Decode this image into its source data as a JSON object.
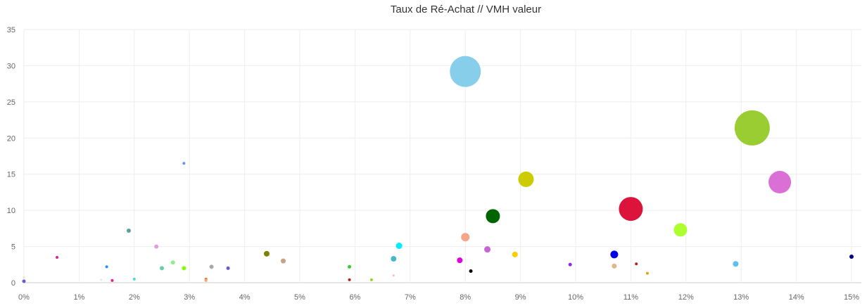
{
  "chart_data": {
    "type": "scatter",
    "subtype": "bubble",
    "title": "Taux de Ré-Achat // VMH valeur",
    "xlabel": "",
    "ylabel": "",
    "xlim": [
      0,
      15
    ],
    "ylim": [
      0,
      35
    ],
    "x_ticks": [
      "0%",
      "1%",
      "2%",
      "3%",
      "4%",
      "5%",
      "6%",
      "7%",
      "8%",
      "9%",
      "10%",
      "11%",
      "12%",
      "13%",
      "14%",
      "15%"
    ],
    "y_ticks": [
      "0",
      "5",
      "10",
      "15",
      "20",
      "25",
      "30",
      "35"
    ],
    "grid": true,
    "legend": "none",
    "points": [
      {
        "x": 0.0,
        "y": 0.7,
        "size": 1.5,
        "color": "#f5deb3"
      },
      {
        "x": 0.0,
        "y": 0.2,
        "size": 2.5,
        "color": "#6a5acd"
      },
      {
        "x": 0.6,
        "y": 3.5,
        "size": 2,
        "color": "#e0218a"
      },
      {
        "x": 1.4,
        "y": 0.4,
        "size": 1.5,
        "color": "#e6e6fa"
      },
      {
        "x": 1.5,
        "y": 2.2,
        "size": 2,
        "color": "#1e90ff"
      },
      {
        "x": 1.6,
        "y": 0.3,
        "size": 2,
        "color": "#e0218a"
      },
      {
        "x": 1.9,
        "y": 7.2,
        "size": 3,
        "color": "#5f9ea0"
      },
      {
        "x": 2.0,
        "y": 0.5,
        "size": 2,
        "color": "#40e0d0"
      },
      {
        "x": 2.4,
        "y": 5.0,
        "size": 3,
        "color": "#dda0dd"
      },
      {
        "x": 2.5,
        "y": 2.0,
        "size": 3,
        "color": "#66cdaa"
      },
      {
        "x": 2.7,
        "y": 2.8,
        "size": 3,
        "color": "#90ee90"
      },
      {
        "x": 2.9,
        "y": 16.5,
        "size": 2,
        "color": "#6495ed"
      },
      {
        "x": 2.9,
        "y": 2.0,
        "size": 3,
        "color": "#7fff00"
      },
      {
        "x": 3.3,
        "y": 0.5,
        "size": 2,
        "color": "#cd853f"
      },
      {
        "x": 3.3,
        "y": 0.3,
        "size": 2,
        "color": "#ffa07a"
      },
      {
        "x": 3.4,
        "y": 2.2,
        "size": 3,
        "color": "#a9a9a9"
      },
      {
        "x": 3.7,
        "y": 2.0,
        "size": 2.5,
        "color": "#6a5acd"
      },
      {
        "x": 4.4,
        "y": 4.0,
        "size": 4,
        "color": "#808000"
      },
      {
        "x": 4.7,
        "y": 3.0,
        "size": 3.5,
        "color": "#c4a484"
      },
      {
        "x": 5.9,
        "y": 2.2,
        "size": 2.5,
        "color": "#32cd32"
      },
      {
        "x": 5.9,
        "y": 0.4,
        "size": 2,
        "color": "#b22222"
      },
      {
        "x": 6.3,
        "y": 0.4,
        "size": 2,
        "color": "#9acd32"
      },
      {
        "x": 6.7,
        "y": 1.0,
        "size": 1.5,
        "color": "#ffb6c1"
      },
      {
        "x": 6.7,
        "y": 3.3,
        "size": 4,
        "color": "#48b8c8"
      },
      {
        "x": 6.8,
        "y": 5.1,
        "size": 4.5,
        "color": "#00eeff"
      },
      {
        "x": 7.9,
        "y": 3.1,
        "size": 4,
        "color": "#dd00dd"
      },
      {
        "x": 8.0,
        "y": 29.2,
        "size": 22,
        "color": "#87ceeb"
      },
      {
        "x": 8.0,
        "y": 6.3,
        "size": 6,
        "color": "#f4a58a"
      },
      {
        "x": 8.1,
        "y": 1.6,
        "size": 2.5,
        "color": "#000000"
      },
      {
        "x": 8.4,
        "y": 4.6,
        "size": 4.5,
        "color": "#c964d4"
      },
      {
        "x": 8.5,
        "y": 9.2,
        "size": 10,
        "color": "#006400"
      },
      {
        "x": 8.9,
        "y": 3.9,
        "size": 4,
        "color": "#ffcc00"
      },
      {
        "x": 9.1,
        "y": 14.3,
        "size": 11,
        "color": "#cccc00"
      },
      {
        "x": 9.9,
        "y": 2.5,
        "size": 2.5,
        "color": "#8a2be2"
      },
      {
        "x": 10.7,
        "y": 3.9,
        "size": 5.5,
        "color": "#0000e6"
      },
      {
        "x": 10.7,
        "y": 2.3,
        "size": 3.5,
        "color": "#deb887"
      },
      {
        "x": 11.0,
        "y": 10.2,
        "size": 17,
        "color": "#dc143c"
      },
      {
        "x": 11.1,
        "y": 2.6,
        "size": 2,
        "color": "#b22222"
      },
      {
        "x": 11.3,
        "y": 1.3,
        "size": 2,
        "color": "#daa520"
      },
      {
        "x": 11.9,
        "y": 7.3,
        "size": 9.5,
        "color": "#adff2f"
      },
      {
        "x": 12.9,
        "y": 2.6,
        "size": 4,
        "color": "#5bc0f0"
      },
      {
        "x": 13.2,
        "y": 21.4,
        "size": 25,
        "color": "#9acd32"
      },
      {
        "x": 13.7,
        "y": 13.9,
        "size": 16,
        "color": "#da70d6"
      },
      {
        "x": 15.0,
        "y": 3.6,
        "size": 3,
        "color": "#00008b"
      }
    ]
  }
}
